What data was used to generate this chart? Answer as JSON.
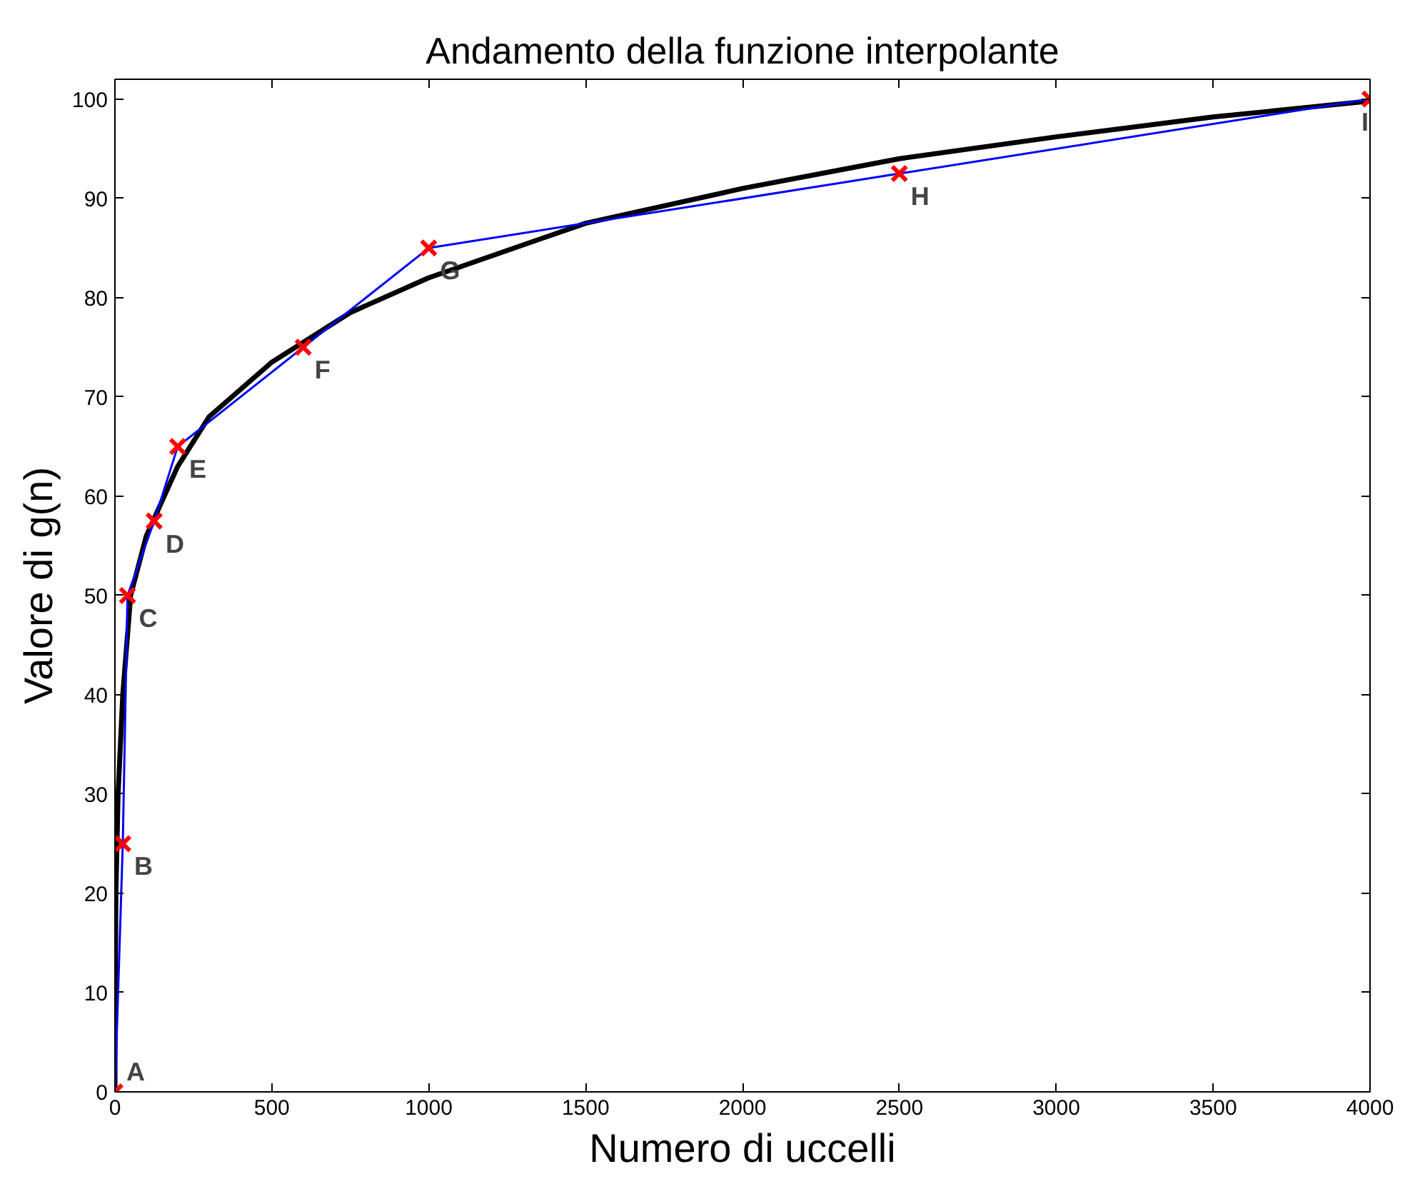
{
  "chart_data": {
    "type": "line",
    "title": "Andamento della funzione interpolante",
    "xlabel": "Numero di uccelli",
    "ylabel": "Valore di g(n)",
    "xlim": [
      0,
      4000
    ],
    "ylim": [
      0,
      102
    ],
    "xticks": [
      0,
      500,
      1000,
      1500,
      2000,
      2500,
      3000,
      3500,
      4000
    ],
    "yticks": [
      0,
      10,
      20,
      30,
      40,
      50,
      60,
      70,
      80,
      90,
      100
    ],
    "grid": false,
    "series": [
      {
        "color": "#000000",
        "x": [
          0,
          1,
          3,
          10,
          25,
          50,
          100,
          200,
          300,
          500,
          750,
          1000,
          1500,
          2000,
          2500,
          3000,
          3500,
          4000
        ],
        "values": [
          0,
          10,
          20,
          30,
          40,
          50,
          56,
          63,
          68,
          73.5,
          78.5,
          82,
          87.5,
          91,
          94,
          96.2,
          98.2,
          99.8
        ]
      },
      {
        "color": "#0000ff",
        "x": [
          0,
          25,
          40,
          125,
          200,
          600,
          1000,
          2500,
          4000
        ],
        "values": [
          0,
          25,
          50,
          57.5,
          65,
          75,
          85,
          92.5,
          100
        ]
      },
      {
        "type": "scatter",
        "marker": "cross",
        "color": "#ff0000",
        "x": [
          0,
          25,
          40,
          125,
          200,
          600,
          1000,
          2500,
          4000
        ],
        "values": [
          0,
          25,
          50,
          57.5,
          65,
          75,
          85,
          92.5,
          100
        ]
      }
    ],
    "annotations": [
      {
        "text": "A",
        "x": 0,
        "y": 0
      },
      {
        "text": "B",
        "x": 25,
        "y": 25
      },
      {
        "text": "C",
        "x": 40,
        "y": 50
      },
      {
        "text": "D",
        "x": 125,
        "y": 57.5
      },
      {
        "text": "E",
        "x": 200,
        "y": 65
      },
      {
        "text": "F",
        "x": 600,
        "y": 75
      },
      {
        "text": "G",
        "x": 1000,
        "y": 85
      },
      {
        "text": "H",
        "x": 2500,
        "y": 92.5
      },
      {
        "text": "I",
        "x": 4000,
        "y": 100
      }
    ]
  }
}
